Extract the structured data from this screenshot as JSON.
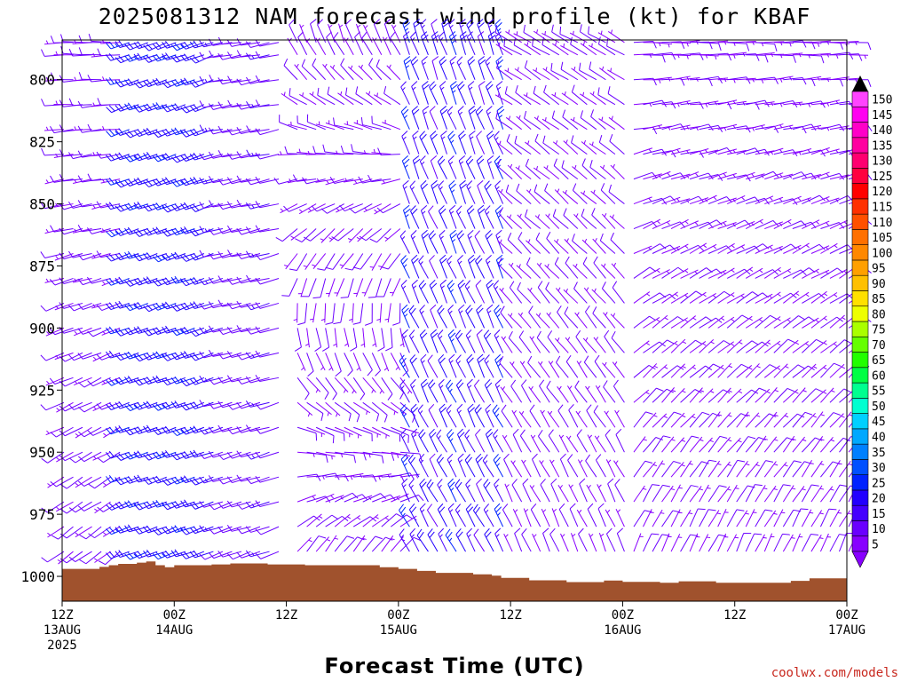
{
  "chart_data": {
    "type": "wind-barb-profile",
    "title": "2025081312 NAM forecast wind profile (kt) for KBAF",
    "xlabel": "Forecast Time (UTC)",
    "credit": "coolwx.com/models",
    "y_axis": {
      "quantity": "pressure (hPa)",
      "range": [
        1010,
        784
      ],
      "ticks": [
        "800",
        "825",
        "850",
        "875",
        "900",
        "925",
        "950",
        "975",
        "1000"
      ]
    },
    "x_axis": {
      "range_hours": [
        0,
        84
      ],
      "ticks": [
        {
          "hour": 0,
          "line1": "12Z",
          "line2": "13AUG",
          "line3": "2025"
        },
        {
          "hour": 12,
          "line1": "00Z",
          "line2": "14AUG",
          "line3": ""
        },
        {
          "hour": 24,
          "line1": "12Z",
          "line2": "",
          "line3": ""
        },
        {
          "hour": 36,
          "line1": "00Z",
          "line2": "15AUG",
          "line3": ""
        },
        {
          "hour": 48,
          "line1": "12Z",
          "line2": "",
          "line3": ""
        },
        {
          "hour": 60,
          "line1": "00Z",
          "line2": "16AUG",
          "line3": ""
        },
        {
          "hour": 72,
          "line1": "12Z",
          "line2": "",
          "line3": ""
        },
        {
          "hour": 84,
          "line1": "00Z",
          "line2": "17AUG",
          "line3": ""
        }
      ]
    },
    "colorbar": {
      "levels": [
        "5",
        "10",
        "15",
        "20",
        "25",
        "30",
        "35",
        "40",
        "45",
        "50",
        "55",
        "60",
        "65",
        "70",
        "75",
        "80",
        "85",
        "90",
        "95",
        "100",
        "105",
        "110",
        "115",
        "120",
        "125",
        "130",
        "135",
        "140",
        "145",
        "150"
      ],
      "colors": [
        "#8800ff",
        "#6a00ff",
        "#4400ff",
        "#2200ff",
        "#0022ff",
        "#0050ff",
        "#0080ff",
        "#00a8ff",
        "#00d0ff",
        "#00ffd0",
        "#00ff90",
        "#00ff44",
        "#22ff00",
        "#66ff00",
        "#aaff00",
        "#eeff00",
        "#ffe000",
        "#ffc000",
        "#ffa000",
        "#ff8800",
        "#ff7000",
        "#ff5000",
        "#ff3000",
        "#ff0000",
        "#ff0040",
        "#ff0070",
        "#ff00a0",
        "#ff00c8",
        "#ff00f0",
        "#ff44ff"
      ]
    },
    "surface_pressure_hpa": [
      {
        "hour": 0,
        "p": 997.0
      },
      {
        "hour": 3,
        "p": 997.0
      },
      {
        "hour": 4,
        "p": 996.2
      },
      {
        "hour": 5,
        "p": 995.5
      },
      {
        "hour": 6,
        "p": 995.0
      },
      {
        "hour": 8,
        "p": 994.5
      },
      {
        "hour": 9,
        "p": 994.0
      },
      {
        "hour": 10,
        "p": 995.5
      },
      {
        "hour": 11,
        "p": 996.3
      },
      {
        "hour": 12,
        "p": 995.5
      },
      {
        "hour": 16,
        "p": 995.2
      },
      {
        "hour": 18,
        "p": 994.8
      },
      {
        "hour": 22,
        "p": 995.2
      },
      {
        "hour": 26,
        "p": 995.5
      },
      {
        "hour": 34,
        "p": 996.3
      },
      {
        "hour": 36,
        "p": 997.0
      },
      {
        "hour": 38,
        "p": 997.8
      },
      {
        "hour": 40,
        "p": 998.6
      },
      {
        "hour": 44,
        "p": 999.2
      },
      {
        "hour": 46,
        "p": 999.7
      },
      {
        "hour": 47,
        "p": 1000.6
      },
      {
        "hour": 50,
        "p": 1001.6
      },
      {
        "hour": 54,
        "p": 1002.3
      },
      {
        "hour": 58,
        "p": 1001.7
      },
      {
        "hour": 60,
        "p": 1002.2
      },
      {
        "hour": 64,
        "p": 1002.6
      },
      {
        "hour": 66,
        "p": 1002.0
      },
      {
        "hour": 70,
        "p": 1002.6
      },
      {
        "hour": 76,
        "p": 1002.6
      },
      {
        "hour": 78,
        "p": 1001.8
      },
      {
        "hour": 80,
        "p": 1000.8
      },
      {
        "hour": 84,
        "p": 1000.0
      }
    ],
    "barb_pressure_levels_hpa": [
      785,
      790,
      800,
      810,
      820,
      830,
      840,
      850,
      860,
      870,
      880,
      890,
      900,
      910,
      920,
      930,
      940,
      950,
      960,
      970,
      980,
      990,
      1000
    ],
    "wind_regimes": [
      {
        "hours": [
          0,
          6
        ],
        "dir_surface": 230,
        "dir_aloft": 270,
        "speed_kt": [
          8,
          14
        ]
      },
      {
        "hours": [
          7,
          16
        ],
        "dir_surface": 250,
        "dir_aloft": 250,
        "speed_kt": [
          20,
          26
        ]
      },
      {
        "hours": [
          17,
          23
        ],
        "dir_surface": 250,
        "dir_aloft": 260,
        "speed_kt": [
          12,
          15
        ]
      },
      {
        "hours": [
          25,
          36
        ],
        "dir_surface": 10,
        "dir_aloft": 340,
        "speed_kt": [
          8,
          12
        ]
      },
      {
        "hours": [
          37,
          47
        ],
        "dir_surface": 330,
        "dir_aloft": 340,
        "speed_kt": [
          14,
          25
        ]
      },
      {
        "hours": [
          48,
          60
        ],
        "dir_surface": 340,
        "dir_aloft": 300,
        "speed_kt": [
          8,
          12
        ]
      },
      {
        "hours": [
          61,
          84
        ],
        "dir_surface": 20,
        "dir_aloft": 90,
        "speed_kt": [
          6,
          12
        ]
      }
    ],
    "missing_column_hours": [
      24
    ]
  }
}
